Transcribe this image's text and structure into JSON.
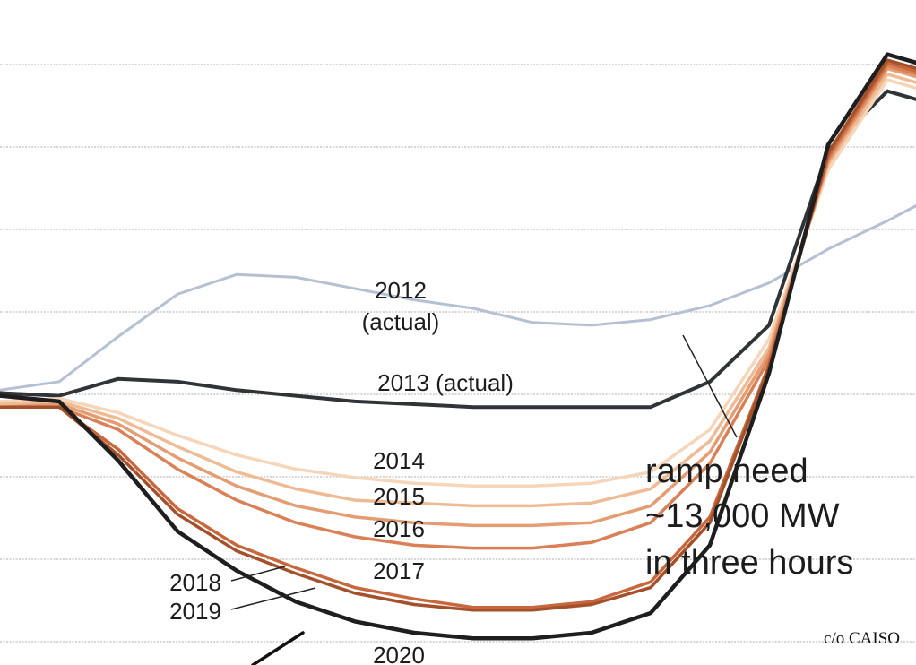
{
  "chart_data": {
    "type": "line",
    "title": "",
    "xlabel": "",
    "ylabel": "",
    "grid": true,
    "colors": {
      "2012": "#b5c1d3",
      "2013": "#303437",
      "2014": "#f6d5b8",
      "2015": "#efbb95",
      "2016": "#e49d72",
      "2017": "#d98057",
      "2018": "#c6673e",
      "2019": "#a3502b",
      "2020": "#1e1e1e"
    },
    "series": [
      {
        "name": "2012",
        "values": [
          20.6,
          20.9,
          22.5,
          24.0,
          24.7,
          24.6,
          24.2,
          23.8,
          23.5,
          23.0,
          22.9,
          23.1,
          23.6,
          24.4,
          25.6,
          26.6,
          27.7,
          28.6
        ]
      },
      {
        "name": "2013",
        "values": [
          20.5,
          20.4,
          21.0,
          20.9,
          20.6,
          20.4,
          20.2,
          20.1,
          20.0,
          20.0,
          20.0,
          20.0,
          20.9,
          22.9,
          29.1,
          31.2,
          30.6,
          29.2
        ]
      },
      {
        "name": "2014",
        "values": [
          20.2,
          20.3,
          19.8,
          19.0,
          18.3,
          17.8,
          17.5,
          17.3,
          17.2,
          17.2,
          17.3,
          17.7,
          19.2,
          22.4,
          28.4,
          31.6,
          31.0,
          29.5
        ]
      },
      {
        "name": "2015",
        "values": [
          20.1,
          20.2,
          19.6,
          18.6,
          17.7,
          17.1,
          16.7,
          16.6,
          16.5,
          16.5,
          16.6,
          17.1,
          18.8,
          22.1,
          28.6,
          31.8,
          31.2,
          29.7
        ]
      },
      {
        "name": "2016",
        "values": [
          20.0,
          20.1,
          19.4,
          18.2,
          17.2,
          16.5,
          16.1,
          15.9,
          15.8,
          15.8,
          15.9,
          16.5,
          18.4,
          21.9,
          28.7,
          32.0,
          31.4,
          29.9
        ]
      },
      {
        "name": "2017",
        "values": [
          20.0,
          20.0,
          19.2,
          17.8,
          16.7,
          15.9,
          15.4,
          15.1,
          15.0,
          15.0,
          15.2,
          15.9,
          18.0,
          21.7,
          28.8,
          32.1,
          31.5,
          30.0
        ]
      },
      {
        "name": "2018",
        "values": [
          20.0,
          20.0,
          18.5,
          16.4,
          15.1,
          14.3,
          13.6,
          13.2,
          12.9,
          12.9,
          13.1,
          13.8,
          16.1,
          21.5,
          28.9,
          32.2,
          31.6,
          30.1
        ]
      },
      {
        "name": "2019",
        "values": [
          20.0,
          20.0,
          18.3,
          16.2,
          14.9,
          14.1,
          13.4,
          13.0,
          12.8,
          12.8,
          13.0,
          13.6,
          15.9,
          21.4,
          29.0,
          32.3,
          31.7,
          30.2
        ]
      },
      {
        "name": "2020",
        "values": [
          20.4,
          20.2,
          18.1,
          15.6,
          14.2,
          13.1,
          12.4,
          12.0,
          11.8,
          11.8,
          12.0,
          12.7,
          15.1,
          21.2,
          29.3,
          32.5,
          31.9,
          30.4
        ]
      }
    ],
    "labels": {
      "actual_2012_year": "2012",
      "actual_2012_note": "(actual)",
      "actual_2013": "2013 (actual)",
      "y2014": "2014",
      "y2015": "2015",
      "y2016": "2016",
      "y2017": "2017",
      "y2018": "2018",
      "y2019": "2019",
      "y2020": "2020"
    },
    "annotation": {
      "line1": "ramp need",
      "line2": "~13,000 MW",
      "line3": "in three hours"
    },
    "credit": "c/o CAISO"
  }
}
